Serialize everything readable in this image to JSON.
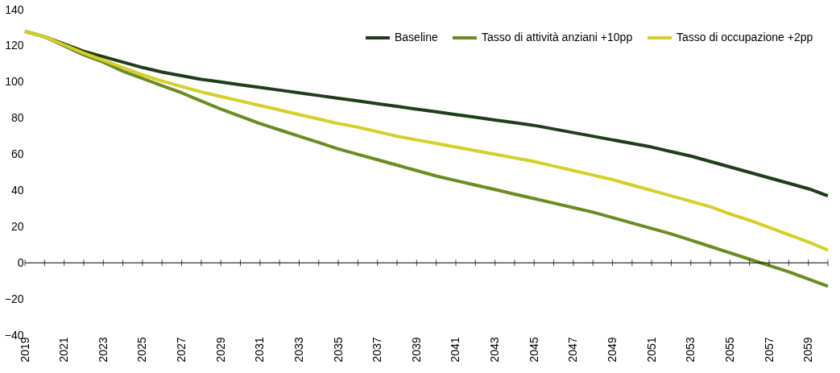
{
  "chart_data": {
    "type": "line",
    "x": [
      2019,
      2020,
      2021,
      2022,
      2023,
      2024,
      2025,
      2026,
      2027,
      2028,
      2029,
      2030,
      2031,
      2032,
      2033,
      2034,
      2035,
      2036,
      2037,
      2038,
      2039,
      2040,
      2041,
      2042,
      2043,
      2044,
      2045,
      2046,
      2047,
      2048,
      2049,
      2050,
      2051,
      2052,
      2053,
      2054,
      2055,
      2056,
      2057,
      2058,
      2059,
      2060
    ],
    "series": [
      {
        "name": "Baseline",
        "color": "#1f3d1a",
        "values": [
          128,
          125,
          121,
          117,
          114,
          111,
          108,
          105.5,
          103.5,
          101.5,
          100,
          98.5,
          97,
          95.5,
          94,
          92.5,
          91,
          89.5,
          88,
          86.5,
          85,
          83.5,
          82,
          80.5,
          79,
          77.5,
          76,
          74,
          72,
          70,
          68,
          66,
          64,
          61.5,
          59,
          56,
          53,
          50,
          47,
          44,
          41,
          37
        ]
      },
      {
        "name": "Tasso di attività anziani +10pp",
        "color": "#6b8c21",
        "values": [
          128,
          125,
          120,
          115,
          111,
          106,
          102,
          98,
          94,
          89.5,
          85,
          81,
          77,
          73.5,
          70,
          66.5,
          63,
          60,
          57,
          54,
          51,
          48,
          45.5,
          43,
          40.5,
          38,
          35.5,
          33,
          30.5,
          28,
          25,
          22,
          19,
          16,
          12.5,
          9,
          5.5,
          2,
          -1.5,
          -5,
          -9,
          -13
        ]
      },
      {
        "name": "Tasso di occupazione +2pp",
        "color": "#d4cf2a",
        "values": [
          128,
          125,
          120.5,
          116,
          112,
          108,
          104,
          100.5,
          97.5,
          94.5,
          92,
          89.5,
          87,
          84.5,
          82,
          79.5,
          77,
          75,
          72.5,
          70,
          68,
          66,
          64,
          62,
          60,
          58,
          56,
          53.5,
          51,
          48.5,
          46,
          43,
          40,
          37,
          34,
          31,
          27,
          23.5,
          19.5,
          15.5,
          11.5,
          7
        ]
      }
    ],
    "xlim": [
      2019,
      2060
    ],
    "xticks": [
      2019,
      2021,
      2023,
      2025,
      2027,
      2029,
      2031,
      2033,
      2035,
      2037,
      2039,
      2041,
      2043,
      2045,
      2047,
      2049,
      2051,
      2053,
      2055,
      2057,
      2059
    ],
    "ylim": [
      -40,
      140
    ],
    "yticks": [
      -40,
      -20,
      0,
      20,
      40,
      60,
      80,
      100,
      120,
      140
    ],
    "ref_lines": [
      {
        "axis": "y",
        "value": 0,
        "color": "#000000"
      }
    ],
    "grid": false,
    "legend": "top right",
    "marker": "none",
    "line_style": "solid"
  }
}
